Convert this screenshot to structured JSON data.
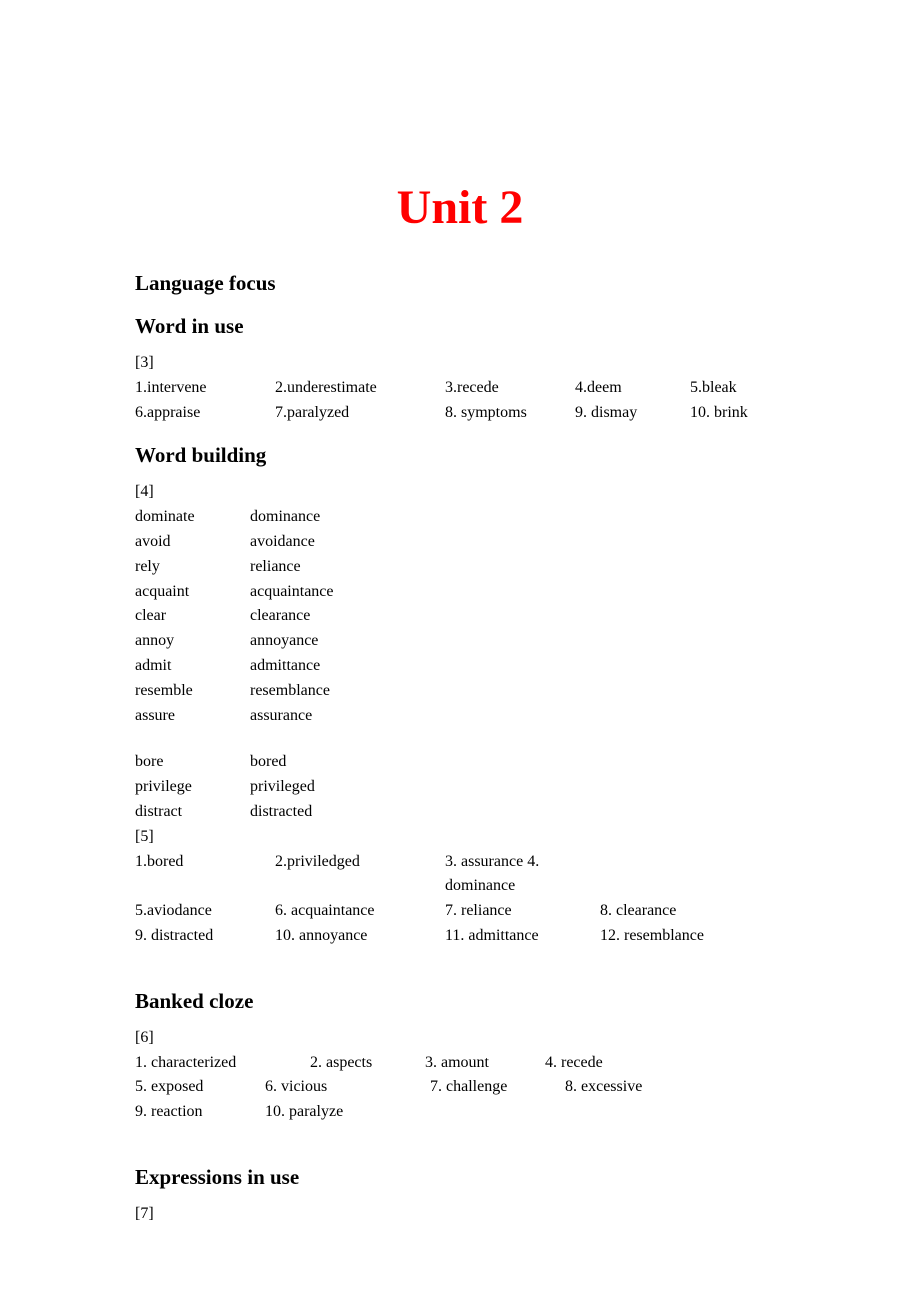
{
  "title": "Unit 2",
  "sections": {
    "language_focus": {
      "heading": "Language focus"
    },
    "word_in_use": {
      "heading": "Word in use",
      "bracket": "[3]",
      "rows": [
        [
          "1.intervene",
          "2.underestimate",
          "3.recede",
          "4.deem",
          "5.bleak"
        ],
        [
          "6.appraise",
          "7.paralyzed",
          "8. symptoms",
          "9. dismay",
          "10. brink"
        ]
      ]
    },
    "word_building": {
      "heading": "Word building",
      "bracket1": "[4]",
      "pairs": [
        [
          "dominate",
          "dominance"
        ],
        [
          "avoid",
          "avoidance"
        ],
        [
          "rely",
          "reliance"
        ],
        [
          "acquaint",
          "acquaintance"
        ],
        [
          "clear",
          "clearance"
        ],
        [
          "annoy",
          "annoyance"
        ],
        [
          "admit",
          "admittance"
        ],
        [
          "resemble",
          "resemblance"
        ],
        [
          "assure",
          "assurance"
        ]
      ],
      "pairs2": [
        [
          "bore",
          "bored"
        ],
        [
          "privilege",
          "privileged"
        ],
        [
          "distract",
          "distracted"
        ]
      ],
      "bracket2": " [5]",
      "rows2": [
        [
          "1.bored",
          "2.priviledged",
          "3. assurance 4. dominance",
          ""
        ],
        [
          "5.aviodance",
          "6. acquaintance",
          "7. reliance",
          "8. clearance"
        ],
        [
          "9. distracted",
          "10. annoyance",
          "11. admittance",
          "12. resemblance"
        ]
      ]
    },
    "banked_cloze": {
      "heading": "Banked cloze",
      "bracket": "[6]",
      "rows": [
        [
          "1. characterized",
          "2. aspects",
          "3. amount",
          "4. recede"
        ],
        [
          "5. exposed",
          "6. vicious",
          "7. challenge",
          "8. excessive"
        ],
        [
          "9. reaction",
          "10. paralyze",
          "",
          ""
        ]
      ]
    },
    "expressions_in_use": {
      "heading": "Expressions in use",
      "bracket": "[7]"
    }
  }
}
